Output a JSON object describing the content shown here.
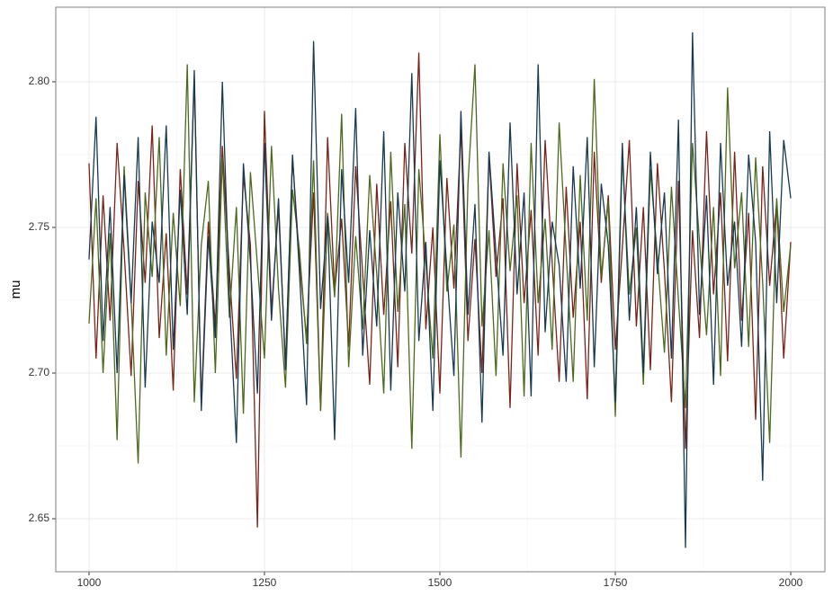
{
  "chart_data": {
    "type": "line",
    "ylabel": "mu",
    "xlim": [
      952.6,
      2048.7
    ],
    "ylim": [
      2.6318,
      2.8256
    ],
    "xticks": [
      1000,
      1250,
      1500,
      1750,
      2000
    ],
    "yticks": [
      2.65,
      {
        "value": 2.7,
        "label": "2.70"
      },
      2.75,
      {
        "value": 2.8,
        "label": "2.80"
      }
    ],
    "grid": true,
    "x": [
      1000,
      1010,
      1020,
      1030,
      1040,
      1050,
      1060,
      1070,
      1080,
      1090,
      1100,
      1110,
      1120,
      1130,
      1140,
      1150,
      1160,
      1170,
      1180,
      1190,
      1200,
      1210,
      1220,
      1230,
      1240,
      1250,
      1260,
      1270,
      1280,
      1290,
      1300,
      1310,
      1320,
      1330,
      1340,
      1350,
      1360,
      1370,
      1380,
      1390,
      1400,
      1410,
      1420,
      1430,
      1440,
      1450,
      1460,
      1470,
      1480,
      1490,
      1500,
      1510,
      1520,
      1530,
      1540,
      1550,
      1560,
      1570,
      1580,
      1590,
      1600,
      1610,
      1620,
      1630,
      1640,
      1650,
      1660,
      1670,
      1680,
      1690,
      1700,
      1710,
      1720,
      1730,
      1740,
      1750,
      1760,
      1770,
      1780,
      1790,
      1800,
      1810,
      1820,
      1830,
      1840,
      1850,
      1860,
      1870,
      1880,
      1890,
      1900,
      1910,
      1920,
      1930,
      1940,
      1950,
      1960,
      1970,
      1980,
      1990,
      2000
    ],
    "series": [
      {
        "color": "#7b2318",
        "values": [
          2.772,
          2.705,
          2.761,
          2.718,
          2.779,
          2.742,
          2.699,
          2.766,
          2.731,
          2.785,
          2.712,
          2.748,
          2.694,
          2.77,
          2.727,
          2.801,
          2.689,
          2.752,
          2.716,
          2.778,
          2.735,
          2.698,
          2.768,
          2.744,
          2.647,
          2.79,
          2.721,
          2.757,
          2.703,
          2.774,
          2.738,
          2.712,
          2.762,
          2.687,
          2.781,
          2.728,
          2.753,
          2.709,
          2.771,
          2.734,
          2.696,
          2.765,
          2.72,
          2.759,
          2.702,
          2.779,
          2.741,
          2.81,
          2.715,
          2.75,
          2.693,
          2.767,
          2.729,
          2.784,
          2.711,
          2.746,
          2.7,
          2.775,
          2.733,
          2.76,
          2.688,
          2.772,
          2.724,
          2.756,
          2.706,
          2.78,
          2.738,
          2.697,
          2.764,
          2.719,
          2.752,
          2.691,
          2.776,
          2.731,
          2.761,
          2.708,
          2.743,
          2.78,
          2.716,
          2.757,
          2.701,
          2.772,
          2.735,
          2.69,
          2.766,
          2.674,
          2.749,
          2.712,
          2.783,
          2.727,
          2.762,
          2.704,
          2.776,
          2.718,
          2.755,
          2.684,
          2.771,
          2.73,
          2.759,
          2.705,
          2.745
        ]
      },
      {
        "color": "#4b6b1c",
        "values": [
          2.717,
          2.76,
          2.7,
          2.748,
          2.677,
          2.771,
          2.725,
          2.669,
          2.762,
          2.733,
          2.781,
          2.706,
          2.755,
          2.723,
          2.806,
          2.69,
          2.744,
          2.766,
          2.7,
          2.774,
          2.719,
          2.757,
          2.686,
          2.769,
          2.737,
          2.705,
          2.778,
          2.729,
          2.695,
          2.763,
          2.742,
          2.71,
          2.773,
          2.687,
          2.755,
          2.726,
          2.789,
          2.702,
          2.747,
          2.715,
          2.768,
          2.734,
          2.693,
          2.776,
          2.721,
          2.758,
          2.674,
          2.77,
          2.738,
          2.705,
          2.782,
          2.728,
          2.751,
          2.671,
          2.765,
          2.806,
          2.716,
          2.749,
          2.699,
          2.772,
          2.735,
          2.761,
          2.692,
          2.779,
          2.724,
          2.753,
          2.708,
          2.786,
          2.741,
          2.697,
          2.768,
          2.718,
          2.801,
          2.733,
          2.759,
          2.685,
          2.775,
          2.727,
          2.75,
          2.696,
          2.77,
          2.74,
          2.707,
          2.764,
          2.725,
          2.688,
          2.779,
          2.745,
          2.713,
          2.757,
          2.699,
          2.798,
          2.736,
          2.762,
          2.709,
          2.774,
          2.731,
          2.676,
          2.76,
          2.721,
          2.744
        ]
      },
      {
        "color": "#173a52",
        "values": [
          2.739,
          2.788,
          2.711,
          2.757,
          2.7,
          2.768,
          2.724,
          2.781,
          2.695,
          2.752,
          2.731,
          2.785,
          2.708,
          2.763,
          2.72,
          2.804,
          2.687,
          2.747,
          2.712,
          2.8,
          2.726,
          2.676,
          2.772,
          2.738,
          2.693,
          2.779,
          2.718,
          2.76,
          2.701,
          2.775,
          2.734,
          2.689,
          2.814,
          2.722,
          2.754,
          2.677,
          2.77,
          2.731,
          2.791,
          2.706,
          2.749,
          2.716,
          2.783,
          2.694,
          2.762,
          2.728,
          2.803,
          2.711,
          2.745,
          2.687,
          2.773,
          2.735,
          2.699,
          2.79,
          2.72,
          2.758,
          2.683,
          2.776,
          2.741,
          2.706,
          2.786,
          2.727,
          2.762,
          2.692,
          2.806,
          2.714,
          2.752,
          2.737,
          2.697,
          2.771,
          2.729,
          2.781,
          2.702,
          2.765,
          2.744,
          2.69,
          2.779,
          2.718,
          2.757,
          2.7,
          2.776,
          2.734,
          2.762,
          2.705,
          2.787,
          2.64,
          2.817,
          2.72,
          2.761,
          2.696,
          2.779,
          2.73,
          2.752,
          2.709,
          2.775,
          2.745,
          2.663,
          2.783,
          2.724,
          2.78,
          2.76
        ]
      }
    ]
  }
}
